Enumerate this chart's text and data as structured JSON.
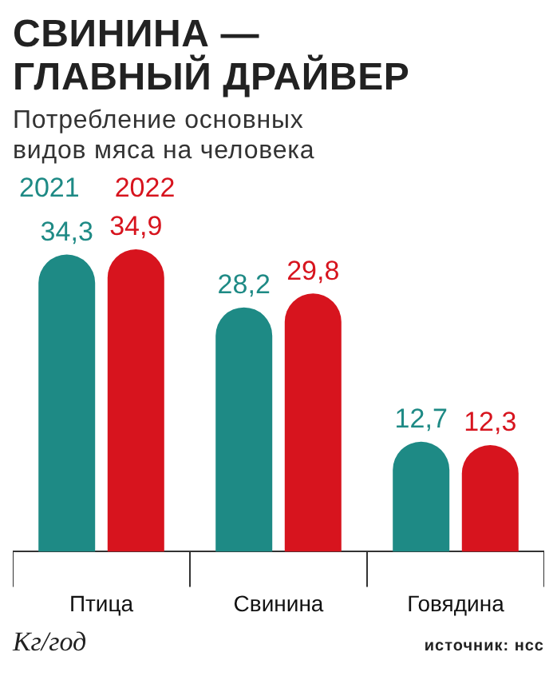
{
  "chart_data": {
    "type": "bar",
    "title": "СВИНИНА — ГЛАВНЫЙ ДРАЙВЕР",
    "subtitle": "Потребление основных видов мяса на человека",
    "categories": [
      "Птица",
      "Свинина",
      "Говядина"
    ],
    "series": [
      {
        "name": "2021",
        "color": "#1e8a85",
        "values": [
          34.3,
          28.2,
          12.7
        ],
        "value_labels": [
          "34,3",
          "28,2",
          "12,7"
        ]
      },
      {
        "name": "2022",
        "color": "#d7141e",
        "values": [
          34.9,
          29.8,
          12.3
        ],
        "value_labels": [
          "34,9",
          "29,8",
          "12,3"
        ]
      }
    ],
    "legend": "top left",
    "grid": false,
    "annotations": [
      "Кг/год",
      "источник: нсс"
    ]
  }
}
